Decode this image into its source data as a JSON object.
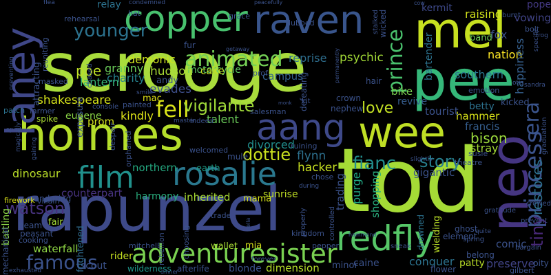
{
  "words": [
    {
      "text": "scrooge",
      "color": "#a9dc3c",
      "orientation": "horizontal"
    },
    {
      "text": "tod",
      "color": "#a5db36",
      "orientation": "horizontal"
    },
    {
      "text": "rapunzel",
      "color": "#3e4a89",
      "orientation": "horizontal"
    },
    {
      "text": "holmes",
      "color": "#b5de2b",
      "orientation": "horizontal"
    },
    {
      "text": "mel",
      "color": "#c7e020",
      "orientation": "horizontal"
    },
    {
      "text": "wee",
      "color": "#bfdf25",
      "orientation": "horizontal"
    },
    {
      "text": "pee",
      "color": "#35b779",
      "orientation": "horizontal"
    },
    {
      "text": "copper",
      "color": "#48c16e",
      "orientation": "horizontal"
    },
    {
      "text": "raven",
      "color": "#39558c",
      "orientation": "horizontal"
    },
    {
      "text": "neo",
      "color": "#453581",
      "orientation": "vertical"
    },
    {
      "text": "laney",
      "color": "#3f4788",
      "orientation": "vertical"
    },
    {
      "text": "aang",
      "color": "#3e4989",
      "orientation": "horizontal"
    },
    {
      "text": "redfly",
      "color": "#56c667",
      "orientation": "horizontal"
    },
    {
      "text": "rosalie",
      "color": "#2a788e",
      "orientation": "horizontal"
    },
    {
      "text": "film",
      "color": "#21918c",
      "orientation": "horizontal"
    },
    {
      "text": "adventuresister",
      "color": "#7ad151",
      "orientation": "horizontal"
    },
    {
      "text": "princess",
      "color": "#3b528b",
      "orientation": "vertical"
    },
    {
      "text": "prince",
      "color": "#4ac16d",
      "orientation": "vertical"
    },
    {
      "text": "fell",
      "color": "#d8e219",
      "orientation": "horizontal"
    },
    {
      "text": "animated",
      "color": "#74d055",
      "orientation": "horizontal"
    },
    {
      "text": "younger",
      "color": "#2c728e",
      "orientation": "horizontal"
    },
    {
      "text": "era",
      "color": "#3a548c",
      "orientation": "vertical"
    },
    {
      "text": "famous",
      "color": "#3b528b",
      "orientation": "horizontal"
    },
    {
      "text": "watson",
      "color": "#46327e",
      "orientation": "horizontal"
    },
    {
      "text": "vigilante",
      "color": "#a0da39",
      "orientation": "horizontal"
    },
    {
      "text": "love",
      "color": "#c2df23",
      "orientation": "horizontal"
    },
    {
      "text": "story",
      "color": "#277f8e",
      "orientation": "horizontal"
    },
    {
      "text": "fianc",
      "color": "#228d8d",
      "orientation": "horizontal"
    },
    {
      "text": "dottie",
      "color": "#cae11f",
      "orientation": "horizontal"
    },
    {
      "text": "bison",
      "color": "#9bd93c",
      "orientation": "horizontal"
    },
    {
      "text": "tiny",
      "color": "#482878",
      "orientation": "vertical"
    },
    {
      "text": "restores",
      "color": "#2e6f8e",
      "orientation": "vertical"
    },
    {
      "text": "poe",
      "color": "#bddf26",
      "orientation": "horizontal"
    },
    {
      "text": "lantern",
      "color": "#39b977",
      "orientation": "horizontal"
    },
    {
      "text": "demonic",
      "color": "#cde11d",
      "orientation": "horizontal"
    },
    {
      "text": "motorcycle",
      "color": "#5ec962",
      "orientation": "horizontal"
    },
    {
      "text": "campus",
      "color": "#34618d",
      "orientation": "horizontal"
    },
    {
      "text": "reprise",
      "color": "#2e6e8e",
      "orientation": "horizontal"
    },
    {
      "text": "psychic",
      "color": "#a2da37",
      "orientation": "horizontal"
    },
    {
      "text": "raising",
      "color": "#d2e21b",
      "orientation": "horizontal"
    },
    {
      "text": "kermit",
      "color": "#3e4989",
      "orientation": "horizontal"
    },
    {
      "text": "bartender",
      "color": "#2c728e",
      "orientation": "vertical"
    },
    {
      "text": "southern",
      "color": "#2a788e",
      "orientation": "horizontal"
    },
    {
      "text": "nation",
      "color": "#fde725",
      "orientation": "horizontal"
    },
    {
      "text": "happiness",
      "color": "#355f8d",
      "orientation": "vertical"
    },
    {
      "text": "vowing",
      "color": "#414487",
      "orientation": "horizontal"
    },
    {
      "text": "pope",
      "color": "#443983",
      "orientation": "horizontal"
    },
    {
      "text": "fox",
      "color": "#3b528b",
      "orientation": "horizontal"
    },
    {
      "text": "band",
      "color": "#6ece58",
      "orientation": "horizontal"
    },
    {
      "text": "granny",
      "color": "#6ccd5a",
      "orientation": "horizontal"
    },
    {
      "text": "charity",
      "color": "#26828e",
      "orientation": "horizontal"
    },
    {
      "text": "hudson",
      "color": "#a8db34",
      "orientation": "horizontal"
    },
    {
      "text": "cake",
      "color": "#c5e021",
      "orientation": "horizontal"
    },
    {
      "text": "shakespeare",
      "color": "#d5e21a",
      "orientation": "horizontal"
    },
    {
      "text": "evades",
      "color": "#3d4e8a",
      "orientation": "horizontal"
    },
    {
      "text": "kindly",
      "color": "#dde318",
      "orientation": "horizontal"
    },
    {
      "text": "mac",
      "color": "#e2e418",
      "orientation": "horizontal"
    },
    {
      "text": "andy",
      "color": "#3b528b",
      "orientation": "horizontal"
    },
    {
      "text": "prom",
      "color": "#d0e11c",
      "orientation": "horizontal"
    },
    {
      "text": "eugene",
      "color": "#8bd646",
      "orientation": "horizontal"
    },
    {
      "text": "talent",
      "color": "#6ccd5a",
      "orientation": "horizontal"
    },
    {
      "text": "divorced",
      "color": "#218e8d",
      "orientation": "horizontal"
    },
    {
      "text": "hammer",
      "color": "#d8e219",
      "orientation": "horizontal"
    },
    {
      "text": "francis",
      "color": "#355e8d",
      "orientation": "horizontal"
    },
    {
      "text": "betty",
      "color": "#2c718e",
      "orientation": "horizontal"
    },
    {
      "text": "tourist",
      "color": "#3b528b",
      "orientation": "horizontal"
    },
    {
      "text": "bike",
      "color": "#7ad151",
      "orientation": "horizontal"
    },
    {
      "text": "revive",
      "color": "#365d8d",
      "orientation": "horizontal"
    },
    {
      "text": "stray",
      "color": "#a5db36",
      "orientation": "horizontal"
    },
    {
      "text": "hacker",
      "color": "#c8e020",
      "orientation": "horizontal"
    },
    {
      "text": "flynn",
      "color": "#2d708e",
      "orientation": "horizontal"
    },
    {
      "text": "gigantic",
      "color": "#3b528b",
      "orientation": "horizontal"
    },
    {
      "text": "dinosaur",
      "color": "#bade28",
      "orientation": "horizontal"
    },
    {
      "text": "northern",
      "color": "#25ab82",
      "orientation": "horizontal"
    },
    {
      "text": "earth",
      "color": "#1f9e89",
      "orientation": "horizontal"
    },
    {
      "text": "harmony",
      "color": "#2ab07f",
      "orientation": "horizontal"
    },
    {
      "text": "inherited",
      "color": "#a8db34",
      "orientation": "horizontal"
    },
    {
      "text": "counterpart",
      "color": "#46327e",
      "orientation": "horizontal"
    },
    {
      "text": "sunrise",
      "color": "#c0df25",
      "orientation": "horizontal"
    },
    {
      "text": "mama",
      "color": "#d5e21a",
      "orientation": "horizontal"
    },
    {
      "text": "purge",
      "color": "#22a884",
      "orientation": "vertical"
    },
    {
      "text": "shopping",
      "color": "#29af7f",
      "orientation": "vertical"
    },
    {
      "text": "trading",
      "color": "#3b528b",
      "orientation": "vertical"
    },
    {
      "text": "comic",
      "color": "#3b528b",
      "orientation": "horizontal"
    },
    {
      "text": "preserve",
      "color": "#414487",
      "orientation": "horizontal"
    },
    {
      "text": "patty",
      "color": "#bade28",
      "orientation": "horizontal"
    },
    {
      "text": "conquer",
      "color": "#2c728e",
      "orientation": "horizontal"
    },
    {
      "text": "caine",
      "color": "#3b528b",
      "orientation": "horizontal"
    },
    {
      "text": "minor",
      "color": "#3b528b",
      "orientation": "horizontal"
    },
    {
      "text": "dimension",
      "color": "#b5de2b",
      "orientation": "horizontal"
    },
    {
      "text": "blonde",
      "color": "#3b528b",
      "orientation": "horizontal"
    },
    {
      "text": "mia",
      "color": "#d8e219",
      "orientation": "horizontal"
    },
    {
      "text": "wallet",
      "color": "#a8db34",
      "orientation": "horizontal"
    },
    {
      "text": "rider",
      "color": "#c5e021",
      "orientation": "horizontal"
    },
    {
      "text": "scout",
      "color": "#3b528b",
      "orientation": "horizontal"
    },
    {
      "text": "waterfall",
      "color": "#8fd744",
      "orientation": "horizontal"
    },
    {
      "text": "fair",
      "color": "#a5db36",
      "orientation": "horizontal"
    },
    {
      "text": "beam",
      "color": "#3b528b",
      "orientation": "horizontal"
    },
    {
      "text": "peasant",
      "color": "#3b528b",
      "orientation": "horizontal"
    },
    {
      "text": "cooking",
      "color": "#3b528b",
      "orientation": "horizontal"
    },
    {
      "text": "frightened",
      "color": "#2f6b8e",
      "orientation": "vertical"
    },
    {
      "text": "afterlife",
      "color": "#3b528b",
      "orientation": "horizontal"
    },
    {
      "text": "wilderness",
      "color": "#1f978b",
      "orientation": "horizontal"
    },
    {
      "text": "flower",
      "color": "#3b528b",
      "orientation": "horizontal"
    },
    {
      "text": "ghost",
      "color": "#3b528b",
      "orientation": "horizontal"
    },
    {
      "text": "element",
      "color": "#3b528b",
      "orientation": "horizontal"
    },
    {
      "text": "belong",
      "color": "#3b528b",
      "orientation": "horizontal"
    },
    {
      "text": "wielding",
      "color": "#bade28",
      "orientation": "vertical"
    },
    {
      "text": "drowned",
      "color": "#2c728e",
      "orientation": "vertical"
    },
    {
      "text": "battling",
      "color": "#8bd646",
      "orientation": "vertical"
    },
    {
      "text": "wandering",
      "color": "#3b528b",
      "orientation": "horizontal"
    },
    {
      "text": "firework",
      "color": "#dde318",
      "orientation": "horizontal"
    },
    {
      "text": "villain",
      "color": "#3b528b",
      "orientation": "horizontal"
    },
    {
      "text": "mechanical",
      "color": "#3b528b",
      "orientation": "vertical"
    },
    {
      "text": "spike",
      "color": "#a8db34",
      "orientation": "horizontal"
    },
    {
      "text": "farmer",
      "color": "#3b528b",
      "orientation": "horizontal"
    },
    {
      "text": "patch",
      "color": "#2c728e",
      "orientation": "horizontal"
    },
    {
      "text": "masked",
      "color": "#3b528b",
      "orientation": "horizontal"
    },
    {
      "text": "attracting",
      "color": "#3b528b",
      "orientation": "vertical"
    },
    {
      "text": "reuniting",
      "color": "#3b528b",
      "orientation": "vertical"
    },
    {
      "text": "rehearsal",
      "color": "#3b528b",
      "orientation": "horizontal"
    },
    {
      "text": "relay",
      "color": "#2c728e",
      "orientation": "horizontal"
    },
    {
      "text": "hat",
      "color": "#3b528b",
      "orientation": "horizontal"
    },
    {
      "text": "grace",
      "color": "#3b528b",
      "orientation": "horizontal"
    },
    {
      "text": "dubbed",
      "color": "#3b528b",
      "orientation": "horizontal"
    },
    {
      "text": "fur",
      "color": "#3b528b",
      "orientation": "horizontal"
    },
    {
      "text": "exposure",
      "color": "#3b528b",
      "orientation": "vertical"
    },
    {
      "text": "chased",
      "color": "#3b528b",
      "orientation": "vertical"
    },
    {
      "text": "painted",
      "color": "#3b528b",
      "orientation": "horizontal"
    },
    {
      "text": "console",
      "color": "#3b528b",
      "orientation": "horizontal"
    },
    {
      "text": "prof",
      "color": "#3b528b",
      "orientation": "horizontal"
    },
    {
      "text": "hair",
      "color": "#3b528b",
      "orientation": "horizontal"
    },
    {
      "text": "crown",
      "color": "#3b528b",
      "orientation": "horizontal"
    },
    {
      "text": "nephew",
      "color": "#3b528b",
      "orientation": "horizontal"
    },
    {
      "text": "defeating",
      "color": "#3b528b",
      "orientation": "vertical"
    },
    {
      "text": "salesman",
      "color": "#3b528b",
      "orientation": "horizontal"
    },
    {
      "text": "emotion",
      "color": "#3b528b",
      "orientation": "horizontal"
    },
    {
      "text": "kicked",
      "color": "#3b528b",
      "orientation": "horizontal"
    },
    {
      "text": "mule",
      "color": "#3b528b",
      "orientation": "horizontal"
    },
    {
      "text": "welcomed",
      "color": "#3b528b",
      "orientation": "horizontal"
    },
    {
      "text": "orphaned",
      "color": "#3b528b",
      "orientation": "vertical"
    },
    {
      "text": "despair",
      "color": "#3b528b",
      "orientation": "vertical"
    },
    {
      "text": "ruining",
      "color": "#3b528b",
      "orientation": "horizontal"
    },
    {
      "text": "chose",
      "color": "#3b528b",
      "orientation": "horizontal"
    },
    {
      "text": "theatre",
      "color": "#3b528b",
      "orientation": "horizontal"
    },
    {
      "text": "susie",
      "color": "#3b528b",
      "orientation": "horizontal"
    },
    {
      "text": "graduation",
      "color": "#3b528b",
      "orientation": "vertical"
    },
    {
      "text": "gratitude",
      "color": "#3b528b",
      "orientation": "horizontal"
    },
    {
      "text": "bargain",
      "color": "#3b528b",
      "orientation": "horizontal"
    },
    {
      "text": "pity",
      "color": "#3b528b",
      "orientation": "horizontal"
    },
    {
      "text": "gilbert",
      "color": "#3b528b",
      "orientation": "horizontal"
    },
    {
      "text": "mitchell",
      "color": "#3b528b",
      "orientation": "horizontal"
    },
    {
      "text": "rebellion",
      "color": "#3b528b",
      "orientation": "vertical"
    },
    {
      "text": "choosing",
      "color": "#3b528b",
      "orientation": "vertical"
    },
    {
      "text": "trade",
      "color": "#3b528b",
      "orientation": "horizontal"
    },
    {
      "text": "kingdom",
      "color": "#3b528b",
      "orientation": "horizontal"
    },
    {
      "text": "properly",
      "color": "#3b528b",
      "orientation": "vertical"
    },
    {
      "text": "controlled",
      "color": "#3b528b",
      "orientation": "vertical"
    },
    {
      "text": "pepper",
      "color": "#3b528b",
      "orientation": "horizontal"
    },
    {
      "text": "forever",
      "color": "#3b528b",
      "orientation": "horizontal"
    },
    {
      "text": "exhausted",
      "color": "#3b528b",
      "orientation": "horizontal"
    },
    {
      "text": "sneak",
      "color": "#3b528b",
      "orientation": "horizontal"
    },
    {
      "text": "spring",
      "color": "#3b528b",
      "orientation": "horizontal"
    },
    {
      "text": "prevent",
      "color": "#3b528b",
      "orientation": "horizontal"
    },
    {
      "text": "crewed",
      "color": "#3b528b",
      "orientation": "horizontal"
    },
    {
      "text": "bolt",
      "color": "#3b528b",
      "orientation": "horizontal"
    },
    {
      "text": "burnt",
      "color": "#3b528b",
      "orientation": "horizontal"
    },
    {
      "text": "specific",
      "color": "#3b528b",
      "orientation": "vertical"
    },
    {
      "text": "frog",
      "color": "#3b528b",
      "orientation": "horizontal"
    },
    {
      "text": "flea",
      "color": "#3b528b",
      "orientation": "horizontal"
    },
    {
      "text": "condemned",
      "color": "#3b528b",
      "orientation": "horizontal"
    },
    {
      "text": "peacefully",
      "color": "#3b528b",
      "orientation": "horizontal"
    },
    {
      "text": "wicked",
      "color": "#3b528b",
      "orientation": "vertical"
    },
    {
      "text": "stalked",
      "color": "#3b528b",
      "orientation": "vertical"
    },
    {
      "text": "preventing",
      "color": "#3b528b",
      "orientation": "vertical"
    },
    {
      "text": "smile",
      "color": "#3b528b",
      "orientation": "horizontal"
    },
    {
      "text": "getaway",
      "color": "#3b528b",
      "orientation": "horizontal"
    },
    {
      "text": "permanently",
      "color": "#3b528b",
      "orientation": "vertical"
    },
    {
      "text": "sandra",
      "color": "#3b528b",
      "orientation": "horizontal"
    },
    {
      "text": "otis",
      "color": "#3b528b",
      "orientation": "horizontal"
    },
    {
      "text": "spirit",
      "color": "#3b528b",
      "orientation": "horizontal"
    },
    {
      "text": "magically",
      "color": "#3b528b",
      "orientation": "vertical"
    },
    {
      "text": "gaining",
      "color": "#3b528b",
      "orientation": "vertical"
    },
    {
      "text": "indeed",
      "color": "#3b528b",
      "orientation": "horizontal"
    },
    {
      "text": "master",
      "color": "#3b528b",
      "orientation": "horizontal"
    },
    {
      "text": "during",
      "color": "#3b528b",
      "orientation": "horizontal"
    },
    {
      "text": "slightly",
      "color": "#3b528b",
      "orientation": "horizontal"
    },
    {
      "text": "hammond",
      "color": "#3b528b",
      "orientation": "horizontal"
    },
    {
      "text": "bella",
      "color": "#3b528b",
      "orientation": "vertical"
    },
    {
      "text": "dinner",
      "color": "#3b528b",
      "orientation": "horizontal"
    },
    {
      "text": "kit",
      "color": "#3b528b",
      "orientation": "horizontal"
    },
    {
      "text": "monk",
      "color": "#3b528b",
      "orientation": "horizontal"
    },
    {
      "text": "quite",
      "color": "#3b528b",
      "orientation": "horizontal"
    },
    {
      "text": "cow",
      "color": "#3b528b",
      "orientation": "horizontal"
    }
  ]
}
